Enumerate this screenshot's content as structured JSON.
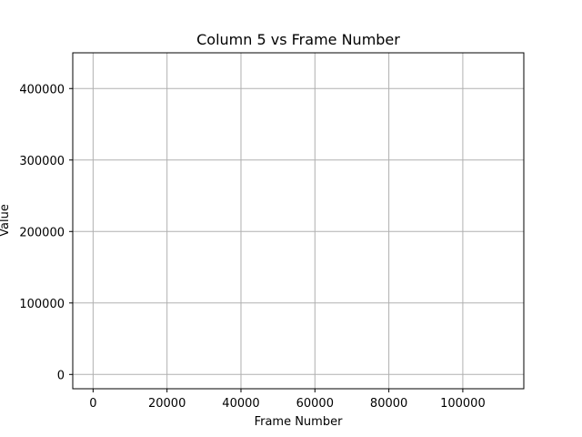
{
  "chart_data": {
    "type": "line",
    "title": "Column 5 vs Frame Number",
    "xlabel": "Frame Number",
    "ylabel": "Value",
    "xlim": [
      -5500,
      116500
    ],
    "ylim": [
      -20000,
      450000
    ],
    "xticks": [
      0,
      20000,
      40000,
      60000,
      80000,
      100000
    ],
    "xtick_labels": [
      "0",
      "20000",
      "40000",
      "60000",
      "80000",
      "100000"
    ],
    "yticks": [
      0,
      100000,
      200000,
      300000,
      400000
    ],
    "ytick_labels": [
      "0",
      "100000",
      "200000",
      "300000",
      "400000"
    ],
    "grid": true,
    "series": [],
    "colors": {
      "grid": "#b0b0b0",
      "axes": "#000000",
      "background": "#ffffff"
    }
  }
}
